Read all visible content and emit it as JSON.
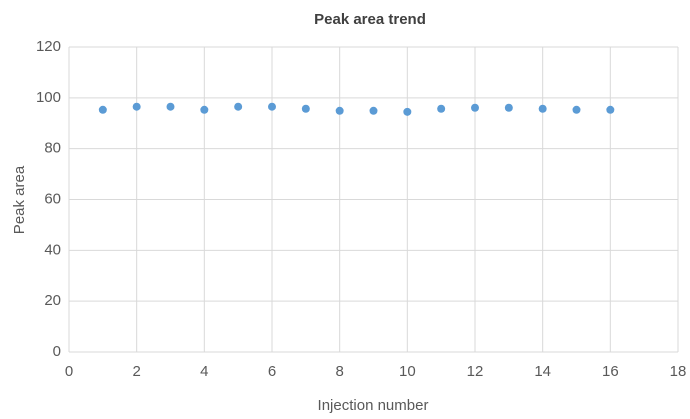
{
  "chart_data": {
    "type": "scatter",
    "title": "Peak area trend",
    "x_label": "Injection number",
    "y_label": "Peak area",
    "series": [
      {
        "name": "Peak area",
        "color": "#5b9bd5",
        "x": [
          1,
          2,
          3,
          4,
          5,
          6,
          7,
          8,
          9,
          10,
          11,
          12,
          13,
          14,
          15,
          16
        ],
        "values": [
          95.3,
          96.5,
          96.5,
          95.3,
          96.5,
          96.5,
          95.7,
          94.9,
          94.9,
          94.5,
          95.7,
          96.1,
          96.1,
          95.7,
          95.3,
          95.3
        ]
      }
    ],
    "xlim": [
      0,
      18
    ],
    "xticks": [
      0,
      2,
      4,
      6,
      8,
      10,
      12,
      14,
      16,
      18
    ],
    "ylim": [
      0,
      120
    ],
    "yticks": [
      0,
      20,
      40,
      60,
      80,
      100,
      120
    ],
    "grid": true
  }
}
